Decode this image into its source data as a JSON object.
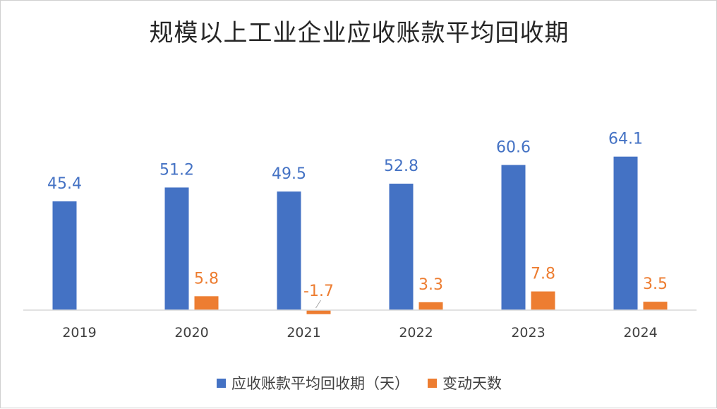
{
  "chart_data": {
    "type": "bar",
    "title": "规模以上工业企业应收账款平均回收期",
    "categories": [
      "2019",
      "2020",
      "2021",
      "2022",
      "2023",
      "2024"
    ],
    "series": [
      {
        "name": "应收账款平均回收期（天）",
        "color": "#4472c4",
        "values": [
          45.4,
          51.2,
          49.5,
          52.8,
          60.6,
          64.1
        ],
        "labels": [
          "45.4",
          "51.2",
          "49.5",
          "52.8",
          "60.6",
          "64.1"
        ]
      },
      {
        "name": "变动天数",
        "color": "#ed7d31",
        "values": [
          null,
          5.8,
          -1.7,
          3.3,
          7.8,
          3.5
        ],
        "labels": [
          "",
          "5.8",
          "-1.7",
          "3.3",
          "7.8",
          "3.5"
        ]
      }
    ],
    "ylim": [
      -2,
      66
    ],
    "grid": false,
    "legend_position": "bottom",
    "axis_color": "#d9d9d9"
  }
}
